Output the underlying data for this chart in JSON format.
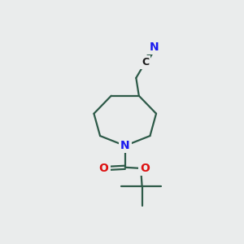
{
  "bg_color": "#eaecec",
  "bond_color": "#2d5a48",
  "N_color": "#1a1aee",
  "O_color": "#dd1111",
  "C_color": "#1a1a1a",
  "line_width": 1.6,
  "font_size_atom": 10,
  "figsize": [
    3.0,
    3.0
  ],
  "dpi": 100,
  "xlim": [
    0,
    10
  ],
  "ylim": [
    0,
    10
  ]
}
